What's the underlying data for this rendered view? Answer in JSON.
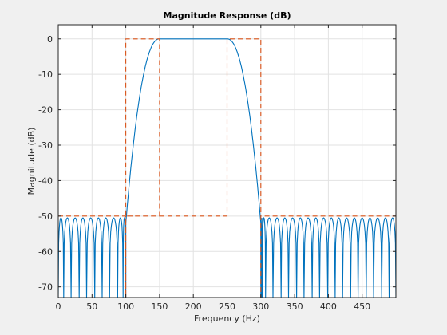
{
  "chart_data": {
    "type": "line",
    "title": "Magnitude Response (dB)",
    "xlabel": "Frequency (Hz)",
    "ylabel": "Magnitude (dB)",
    "xlim": [
      0,
      500
    ],
    "ylim": [
      -73,
      4
    ],
    "xticks": [
      0,
      50,
      100,
      150,
      200,
      250,
      300,
      350,
      400,
      450
    ],
    "yticks": [
      0,
      -10,
      -20,
      -30,
      -40,
      -50,
      -60,
      -70
    ],
    "grid": true,
    "colors": {
      "response": "#0072bd",
      "mask": "#d95319",
      "grid": "#e2e2e2",
      "axes_bg": "#ffffff",
      "figure_bg": "#f0f0f0"
    },
    "series": [
      {
        "style": "solid",
        "description_points": {
          "passband": {
            "x": [
              150,
              250
            ],
            "y": 0
          },
          "transition_edges_x": [
            100,
            300
          ],
          "stopband_lobe_peak_db": -50.5,
          "stopband_null_floor_db": -73,
          "lower_stopband_nulls_x": [
            8,
            19,
            31,
            42,
            54,
            65,
            76,
            88,
            96
          ],
          "upper_stopband_nulls_x": [
            302,
            307,
            318,
            330,
            341,
            353,
            364,
            376,
            387,
            399,
            410,
            421,
            433,
            444,
            456,
            467,
            479,
            490
          ]
        }
      },
      {
        "style": "dashed",
        "mask_path": [
          [
            0,
            -50
          ],
          [
            100,
            -50
          ],
          [
            100,
            -73
          ],
          [
            100,
            0
          ],
          [
            150,
            0
          ],
          [
            150,
            -50
          ],
          [
            100,
            -50
          ],
          [
            250,
            -50
          ],
          [
            250,
            0
          ],
          [
            300,
            0
          ],
          [
            300,
            -73
          ],
          [
            300,
            -50
          ],
          [
            500,
            -50
          ]
        ]
      }
    ]
  }
}
